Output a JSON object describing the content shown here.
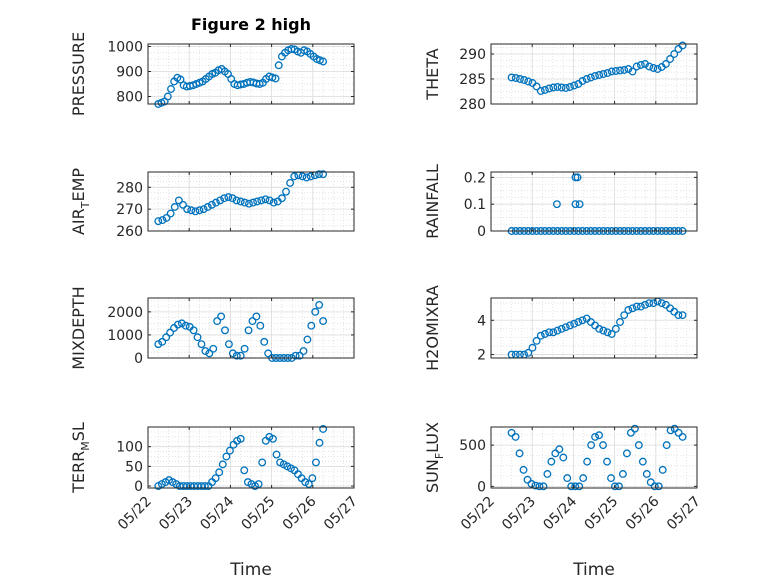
{
  "figure_title": "Figure 2 high",
  "x_axis_label": "Time",
  "x_tick_labels": [
    "05/22",
    "05/23",
    "05/24",
    "05/25",
    "05/26",
    "05/27"
  ],
  "marker_color": "#0072BD",
  "chart_data": [
    {
      "type": "scatter",
      "title": "Figure 2 high",
      "ylabel": "PRESSURE",
      "ylim": [
        770,
        1010
      ],
      "yticks": [
        800,
        900,
        1000
      ],
      "xlim": [
        0,
        5
      ],
      "x_start": 0.25,
      "x_end": 4.25,
      "values": [
        770,
        775,
        780,
        800,
        830,
        860,
        875,
        868,
        845,
        840,
        842,
        845,
        850,
        855,
        860,
        870,
        880,
        890,
        895,
        905,
        910,
        900,
        890,
        870,
        850,
        845,
        848,
        850,
        855,
        858,
        856,
        852,
        850,
        855,
        870,
        880,
        876,
        872,
        925,
        960,
        975,
        985,
        990,
        988,
        980,
        975,
        985,
        980,
        970,
        960,
        950,
        945,
        940
      ]
    },
    {
      "type": "scatter",
      "ylabel": "THETA",
      "ylim": [
        280,
        292
      ],
      "yticks": [
        280,
        285,
        290
      ],
      "xlim": [
        0,
        5
      ],
      "x_start": 0.5,
      "x_end": 4.65,
      "values": [
        285.3,
        285.2,
        285.0,
        284.8,
        284.5,
        284.2,
        283.5,
        282.6,
        282.8,
        283.1,
        283.3,
        283.4,
        283.3,
        283.2,
        283.4,
        283.7,
        284.0,
        284.6,
        285.0,
        285.3,
        285.6,
        285.8,
        286.0,
        286.2,
        286.5,
        286.6,
        286.7,
        286.8,
        287.0,
        286.5,
        287.5,
        287.8,
        288.0,
        287.5,
        287.2,
        287.0,
        287.4,
        288.0,
        289.0,
        290.0,
        291.0,
        291.7
      ]
    },
    {
      "type": "scatter",
      "ylabel": "AIR_TEMP",
      "ylabel_main": "AIR",
      "ylabel_sub": "T",
      "ylabel_rest": "EMP",
      "ylim": [
        260,
        287
      ],
      "yticks": [
        260,
        270,
        280
      ],
      "xlim": [
        0,
        5
      ],
      "x_start": 0.25,
      "x_end": 4.25,
      "values": [
        264.5,
        265.0,
        266.0,
        268.0,
        271.0,
        274.0,
        272.0,
        270.0,
        269.5,
        269.0,
        269.5,
        270.0,
        271.0,
        272.0,
        273.0,
        274.0,
        275.0,
        275.5,
        275.0,
        274.0,
        273.5,
        273.0,
        272.5,
        273.0,
        273.5,
        274.0,
        274.5,
        274.0,
        273.0,
        273.5,
        275.0,
        278.0,
        282.0,
        285.0,
        285.5,
        285.0,
        284.5,
        285.0,
        285.5,
        286.0,
        286.0
      ]
    },
    {
      "type": "scatter",
      "ylabel": "RAINFALL",
      "ylim": [
        0,
        0.22
      ],
      "yticks": [
        0,
        0.1,
        0.2
      ],
      "ytick_labels": [
        "0",
        "0.1",
        "0.2"
      ],
      "xlim": [
        0,
        5
      ],
      "x_start": 0.5,
      "x_end": 4.65,
      "values": [
        0,
        0,
        0,
        0,
        0,
        0,
        0,
        0,
        0,
        0,
        0,
        0,
        0,
        0,
        0,
        0,
        0,
        0,
        0,
        0,
        0,
        0,
        0,
        0,
        0,
        0,
        0,
        0,
        0,
        0,
        0,
        0,
        0,
        0,
        0,
        0,
        0,
        0,
        0,
        0,
        0,
        0
      ],
      "outliers": [
        {
          "x": 1.6,
          "y": 0.1
        },
        {
          "x": 2.05,
          "y": 0.2
        },
        {
          "x": 2.1,
          "y": 0.2
        },
        {
          "x": 2.05,
          "y": 0.1
        },
        {
          "x": 2.15,
          "y": 0.1
        }
      ]
    },
    {
      "type": "scatter",
      "ylabel": "MIXDEPTH",
      "ylim": [
        0,
        2600
      ],
      "yticks": [
        0,
        1000,
        2000
      ],
      "xlim": [
        0,
        5
      ],
      "x_start": 0.25,
      "x_end": 4.25,
      "values": [
        600,
        700,
        900,
        1100,
        1300,
        1450,
        1500,
        1400,
        1350,
        1200,
        900,
        600,
        300,
        200,
        400,
        1600,
        1800,
        1200,
        600,
        200,
        100,
        100,
        400,
        1200,
        1600,
        1800,
        1400,
        700,
        200,
        0,
        0,
        0,
        0,
        0,
        0,
        100,
        100,
        300,
        800,
        1400,
        2000,
        2300,
        1600
      ]
    },
    {
      "type": "scatter",
      "ylabel": "H2OMIXRA",
      "ylim": [
        1.8,
        5.3
      ],
      "yticks": [
        2,
        4
      ],
      "xlim": [
        0,
        5
      ],
      "x_start": 0.5,
      "x_end": 4.65,
      "values": [
        2.0,
        2.0,
        2.0,
        2.0,
        2.1,
        2.4,
        2.8,
        3.1,
        3.2,
        3.3,
        3.3,
        3.4,
        3.5,
        3.6,
        3.7,
        3.8,
        3.9,
        4.0,
        4.1,
        3.9,
        3.7,
        3.5,
        3.4,
        3.3,
        3.2,
        3.5,
        3.9,
        4.3,
        4.6,
        4.7,
        4.8,
        4.8,
        4.9,
        5.0,
        5.0,
        5.1,
        5.0,
        4.9,
        4.7,
        4.5,
        4.3,
        4.3
      ]
    },
    {
      "type": "scatter",
      "ylabel": "TERR_MSL",
      "ylabel_main": "TERR",
      "ylabel_sub": "M",
      "ylabel_rest": "SL",
      "ylim": [
        -5,
        150
      ],
      "yticks": [
        0,
        50,
        100
      ],
      "xlim": [
        0,
        5
      ],
      "x_start": 0.25,
      "x_end": 4.25,
      "values": [
        0,
        5,
        10,
        15,
        10,
        5,
        0,
        0,
        0,
        0,
        0,
        0,
        0,
        0,
        0,
        10,
        20,
        35,
        55,
        75,
        90,
        105,
        115,
        120,
        40,
        10,
        5,
        0,
        5,
        60,
        115,
        125,
        120,
        80,
        60,
        55,
        50,
        45,
        40,
        30,
        20,
        10,
        5,
        20,
        60,
        110,
        145
      ]
    },
    {
      "type": "scatter",
      "ylabel": "SUN_FLUX",
      "ylabel_main": "SUN",
      "ylabel_sub": "F",
      "ylabel_rest": "LUX",
      "ylim": [
        -20,
        720
      ],
      "yticks": [
        0,
        500
      ],
      "xlim": [
        0,
        5
      ],
      "x_start": 0.5,
      "x_end": 4.65,
      "values": [
        650,
        600,
        400,
        200,
        80,
        30,
        10,
        0,
        0,
        150,
        300,
        400,
        450,
        350,
        100,
        0,
        0,
        0,
        100,
        300,
        500,
        600,
        620,
        500,
        300,
        100,
        0,
        0,
        150,
        400,
        650,
        700,
        500,
        300,
        150,
        50,
        0,
        0,
        200,
        500,
        680,
        700,
        650,
        600
      ]
    }
  ]
}
